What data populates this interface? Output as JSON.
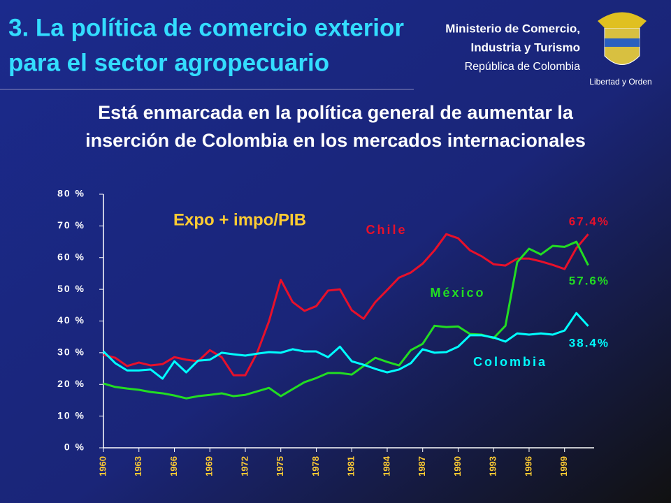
{
  "header": {
    "title_line1": "3. La política de comercio exterior",
    "title_line2": "para el sector agropecuario",
    "ministry_line1": "Ministerio de Comercio,",
    "ministry_line2": "Industria y Turismo",
    "ministry_line3": "República de Colombia",
    "motto": "Libertad y Orden",
    "subtitle_line1": "Está enmarcada en la política general de aumentar la",
    "subtitle_line2": "inserción de Colombia en los mercados internacionales"
  },
  "chart_data": {
    "type": "line",
    "title": "Expo + impo/PIB",
    "x": [
      1960,
      1961,
      1962,
      1963,
      1964,
      1965,
      1966,
      1967,
      1968,
      1969,
      1970,
      1971,
      1972,
      1973,
      1974,
      1975,
      1976,
      1977,
      1978,
      1979,
      1980,
      1981,
      1982,
      1983,
      1984,
      1985,
      1986,
      1987,
      1988,
      1989,
      1990,
      1991,
      1992,
      1993,
      1994,
      1995,
      1996,
      1997,
      1998,
      1999,
      2000,
      2001
    ],
    "xlim": [
      1960,
      2001.5
    ],
    "xticks": [
      1960,
      1963,
      1966,
      1969,
      1972,
      1975,
      1978,
      1981,
      1984,
      1987,
      1990,
      1993,
      1996,
      1999
    ],
    "ylim": [
      0,
      80
    ],
    "yticks": [
      {
        "value": 0,
        "label": "0 %"
      },
      {
        "value": 10,
        "label": "10 %"
      },
      {
        "value": 20,
        "label": "20 %"
      },
      {
        "value": 30,
        "label": "30 %"
      },
      {
        "value": 40,
        "label": "40 %"
      },
      {
        "value": 50,
        "label": "50 %"
      },
      {
        "value": 60,
        "label": "60 %"
      },
      {
        "value": 70,
        "label": "70 %"
      },
      {
        "value": 80,
        "label": "80 %"
      }
    ],
    "series": [
      {
        "name": "Chile",
        "color": "#e8102a",
        "values": [
          29.3,
          28.4,
          25.8,
          26.9,
          26,
          26.4,
          28.6,
          27.8,
          27.3,
          30.8,
          28.6,
          22.9,
          22.9,
          30,
          39.9,
          53,
          46,
          43.2,
          44.7,
          49.6,
          50,
          43.4,
          40.7,
          46,
          49.8,
          53.7,
          55.3,
          58.1,
          62.3,
          67.4,
          66.1,
          62.3,
          60.4,
          57.9,
          57.5,
          59.7,
          59.7,
          58.8,
          57.7,
          56.4,
          63,
          67.4
        ]
      },
      {
        "name": "México",
        "color": "#22dd22",
        "values": [
          20.3,
          19.2,
          18.7,
          18.3,
          17.6,
          17.2,
          16.5,
          15.6,
          16.3,
          16.7,
          17.2,
          16.3,
          16.7,
          17.8,
          18.9,
          16.3,
          18.5,
          20.7,
          22,
          23.6,
          23.6,
          23.1,
          25.8,
          28.4,
          27.1,
          26,
          30.8,
          32.8,
          38.5,
          38.1,
          38.3,
          35.9,
          35.7,
          34.6,
          38.5,
          58.6,
          62.8,
          61,
          63.7,
          63.4,
          65,
          57.6
        ]
      },
      {
        "name": "Colombia",
        "color": "#00ffff",
        "values": [
          30.4,
          26.7,
          24.4,
          24.4,
          24.7,
          21.8,
          27.3,
          23.8,
          27.5,
          27.8,
          30,
          29.5,
          29.1,
          29.7,
          30.2,
          30,
          31.1,
          30.4,
          30.4,
          28.6,
          31.9,
          27.3,
          26.2,
          24.9,
          23.8,
          24.7,
          26.7,
          31.1,
          30,
          30.2,
          31.9,
          35.5,
          35.5,
          34.8,
          33.5,
          36.1,
          35.7,
          36.1,
          35.7,
          37,
          42.5,
          38.4
        ]
      }
    ],
    "end_labels": [
      "67.4%",
      "57.6%",
      "38.4%"
    ]
  }
}
